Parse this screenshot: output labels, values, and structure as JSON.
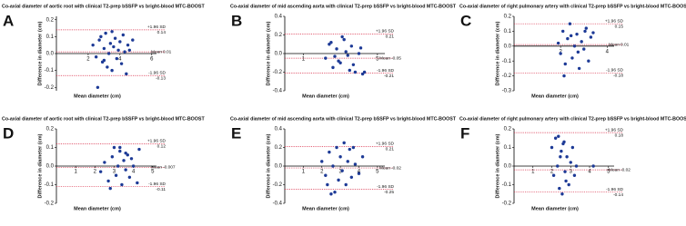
{
  "chart_data": [
    {
      "type": "scatter",
      "panel": "A",
      "title": "Co-axial diameter of  aortic root  with clinical T2-prep bSSFP vs bright-blood MTC-BOOST",
      "x_label": "Mean diameter (cm)",
      "y_label": "Difference in diameter (cm)",
      "xlim": [
        0,
        6.3
      ],
      "xticks": [
        2,
        4,
        6
      ],
      "ylim": [
        -0.22,
        0.22
      ],
      "yticks": [
        -0.2,
        -0.1,
        {
          "value": 0,
          "label": "0.0"
        },
        0.1,
        0.2
      ],
      "ref_lines": [
        {
          "name": "+1.96 SD",
          "value": 0.14
        },
        {
          "name": "Mean",
          "value": 0.01
        },
        {
          "name": "-1.96 SD",
          "value": -0.13
        }
      ],
      "series": [
        {
          "color": "#1d3a96",
          "x": [
            2.3,
            2.5,
            2.7,
            2.8,
            2.9,
            3.0,
            3.1,
            3.2,
            3.3,
            3.4,
            3.5,
            3.6,
            3.7,
            3.8,
            3.9,
            4.0,
            4.1,
            4.2,
            4.3,
            4.4,
            4.5,
            4.6,
            2.6,
            3.5,
            3.0,
            4.8
          ],
          "values": [
            0.05,
            -0.02,
            0.08,
            0.1,
            -0.05,
            0.03,
            0.12,
            -0.08,
            0.0,
            0.06,
            -0.1,
            0.04,
            0.09,
            -0.03,
            0.02,
            0.07,
            -0.06,
            0.11,
            0.01,
            -0.12,
            0.05,
            0.02,
            -0.2,
            0.13,
            -0.04,
            0.08
          ]
        }
      ]
    },
    {
      "type": "scatter",
      "panel": "B",
      "title": "Co-axial diameter of  mid ascending aorta  with clinical T2-prep bSSFP vs bright-blood MTC-BOOST",
      "x_label": "Mean diameter (cm)",
      "y_label": "Difference in diameter (cm)",
      "xlim": [
        0,
        5.4
      ],
      "xticks": [
        1,
        5
      ],
      "ylim": [
        -0.4,
        0.4
      ],
      "yticks": [
        -0.4,
        -0.2,
        {
          "value": 0,
          "label": "0.0"
        },
        0.2,
        0.4
      ],
      "ref_lines": [
        {
          "name": "+1.96 SD",
          "value": 0.21
        },
        {
          "name": "Mean",
          "value": -0.05
        },
        {
          "name": "-1.96 SD",
          "value": -0.21
        }
      ],
      "series": [
        {
          "color": "#1d3a96",
          "x": [
            2.2,
            2.4,
            2.6,
            2.8,
            3.0,
            3.2,
            3.4,
            3.6,
            3.8,
            4.0,
            4.2,
            2.5,
            2.9,
            3.3,
            3.7,
            4.1,
            3.1,
            3.5,
            4.3,
            2.7
          ],
          "values": [
            -0.05,
            0.1,
            -0.15,
            0.05,
            -0.1,
            0.15,
            -0.02,
            0.08,
            -0.2,
            0.0,
            -0.22,
            0.12,
            -0.08,
            0.02,
            -0.12,
            0.06,
            0.18,
            -0.18,
            -0.2,
            -0.03
          ]
        }
      ]
    },
    {
      "type": "scatter",
      "panel": "C",
      "title": "Co-axial diameter of right pulmonary artery with clinical T2-prep bSSFP vs bright-blood MTC-BOOST",
      "x_label": "Mean diameter (cm)",
      "y_label": "Difference in diameter (cm)",
      "xlim": [
        0,
        4.3
      ],
      "xticks": [
        2,
        4
      ],
      "ylim": [
        -0.3,
        0.2
      ],
      "yticks": [
        -0.3,
        -0.2,
        -0.1,
        {
          "value": 0,
          "label": "0.0"
        },
        0.1,
        0.2
      ],
      "ref_lines": [
        {
          "name": "+1.96 SD",
          "value": 0.15
        },
        {
          "name": "Mean",
          "value": 0.01
        },
        {
          "name": "-1.96 SD",
          "value": -0.18
        }
      ],
      "series": [
        {
          "color": "#1d3a96",
          "x": [
            1.9,
            2.0,
            2.1,
            2.2,
            2.3,
            2.4,
            2.5,
            2.6,
            2.7,
            2.8,
            2.9,
            3.0,
            3.1,
            3.2,
            3.3,
            2.15,
            2.45,
            2.75,
            3.05,
            3.4
          ],
          "values": [
            0.02,
            -0.05,
            0.1,
            -0.12,
            0.05,
            0.15,
            -0.08,
            0.0,
            0.08,
            -0.15,
            0.03,
            -0.02,
            0.12,
            -0.1,
            0.06,
            -0.2,
            0.07,
            -0.04,
            0.1,
            0.09
          ]
        }
      ]
    },
    {
      "type": "scatter",
      "panel": "D",
      "title": "Co-axial diameter of aortic root with clinical T2-prep bSSFP vs bright-blood MTC-BOOST",
      "x_label": "Mean diameter (cm)",
      "y_label": "Difference in diameter (cm)",
      "xlim": [
        0,
        5.2
      ],
      "xticks": [
        1,
        2,
        3,
        4,
        5
      ],
      "ylim": [
        -0.2,
        0.2
      ],
      "yticks": [
        -0.2,
        -0.1,
        {
          "value": 0,
          "label": "0.0"
        },
        0.1,
        0.2
      ],
      "ref_lines": [
        {
          "name": "+1.96 SD",
          "value": 0.12
        },
        {
          "name": "Mean",
          "value": -0.007
        },
        {
          "name": "-1.96 SD",
          "value": -0.11
        }
      ],
      "series": [
        {
          "color": "#1d3a96",
          "x": [
            2.3,
            2.5,
            2.7,
            2.9,
            3.0,
            3.1,
            3.2,
            3.3,
            3.4,
            3.5,
            3.6,
            3.7,
            3.8,
            3.9,
            4.0,
            4.3,
            2.8,
            3.3,
            3.6,
            4.2
          ],
          "values": [
            -0.03,
            0.02,
            -0.08,
            0.05,
            0.1,
            -0.05,
            0.0,
            0.08,
            -0.1,
            0.03,
            -0.02,
            0.06,
            -0.06,
            0.04,
            0.0,
            0.09,
            -0.12,
            0.1,
            0.07,
            -0.09
          ]
        }
      ]
    },
    {
      "type": "scatter",
      "panel": "E",
      "title": "Co-axial diameter of mid ascending aorta with clinical  T2-prep bSSFP vs bright-blood MTC-BOOST",
      "x_label": "Mean diameter (cm)",
      "y_label": "Difference in diameter (cm)",
      "xlim": [
        0,
        5.4
      ],
      "xticks": [
        1,
        2,
        3,
        4,
        5
      ],
      "ylim": [
        -0.4,
        0.4
      ],
      "yticks": [
        -0.4,
        -0.2,
        {
          "value": 0,
          "label": "0.0"
        },
        0.2,
        0.4
      ],
      "ref_lines": [
        {
          "name": "+1.96 SD",
          "value": 0.21
        },
        {
          "name": "Mean",
          "value": -0.02
        },
        {
          "name": "-1.96 SD",
          "value": -0.25
        }
      ],
      "series": [
        {
          "color": "#1d3a96",
          "x": [
            2.0,
            2.2,
            2.4,
            2.5,
            2.6,
            2.8,
            2.9,
            3.0,
            3.1,
            3.2,
            3.3,
            3.4,
            3.5,
            3.6,
            3.8,
            4.0,
            4.2,
            2.3,
            2.7,
            3.7
          ],
          "values": [
            0.05,
            -0.1,
            0.15,
            -0.3,
            0.0,
            0.2,
            -0.15,
            0.1,
            -0.05,
            0.25,
            -0.2,
            0.05,
            0.18,
            -0.12,
            0.02,
            -0.08,
            0.1,
            -0.2,
            -0.28,
            0.2
          ]
        }
      ]
    },
    {
      "type": "scatter",
      "panel": "F",
      "title": "Co-axial diameter of right pulmonary artery with clinical T2-prep bSSFP vs bright-blood MTC-BOOST",
      "x_label": "Mean diameter (cm)",
      "y_label": "Difference in diameter (cm)",
      "xlim": [
        0,
        5.3
      ],
      "xticks": [
        1,
        2,
        3,
        4,
        5
      ],
      "ylim": [
        -0.2,
        0.2
      ],
      "yticks": [
        -0.2,
        -0.1,
        {
          "value": 0,
          "label": "0.0"
        },
        0.1,
        0.2
      ],
      "ref_lines": [
        {
          "name": "+1.96 SD",
          "value": 0.18
        },
        {
          "name": "Mean",
          "value": -0.02
        },
        {
          "name": "-1.96 SD",
          "value": -0.14
        }
      ],
      "series": [
        {
          "color": "#1d3a96",
          "x": [
            2.0,
            2.1,
            2.2,
            2.3,
            2.4,
            2.5,
            2.6,
            2.7,
            2.8,
            2.9,
            3.0,
            3.1,
            3.2,
            3.3,
            2.35,
            2.55,
            2.75,
            4.2,
            2.45,
            2.65
          ],
          "values": [
            0.1,
            -0.05,
            0.15,
            0.0,
            -0.12,
            0.08,
            0.12,
            -0.03,
            0.05,
            -0.1,
            0.02,
            0.1,
            -0.05,
            0.0,
            0.16,
            -0.15,
            -0.08,
            0.0,
            0.05,
            0.13
          ]
        }
      ]
    }
  ]
}
